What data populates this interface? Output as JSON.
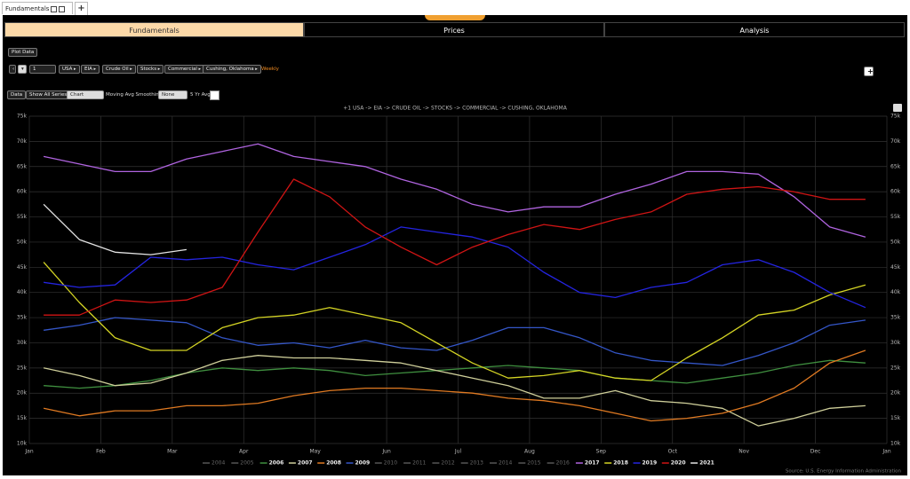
{
  "window_tab": {
    "title": "Fundamentals"
  },
  "tabs": [
    "Fundamentals",
    "Prices",
    "Analysis"
  ],
  "toolbar": {
    "plot_button": "Plot Data",
    "step": "1",
    "breadcrumb": [
      "USA",
      "EIA",
      "Crude Oil",
      "Stocks",
      "Commercial",
      "Cushing, Oklahoma"
    ],
    "frequency": "Weekly"
  },
  "options": {
    "data_button": "Data",
    "show_all": "Show All Series",
    "view_select": "Chart",
    "smoothing_label": "Moving Avg Smoothing",
    "smoothing_select": "None",
    "avg_label": "5 Yr Avg:"
  },
  "chart_data": {
    "type": "line",
    "subtitle": "+1 USA -> EIA -> CRUDE OIL -> STOCKS -> COMMERCIAL -> CUSHING, OKLAHOMA",
    "source": "Source: U.S. Energy Information Administration",
    "x": [
      0.2,
      0.7,
      1.2,
      1.7,
      2.2,
      2.7,
      3.2,
      3.7,
      4.2,
      4.7,
      5.2,
      5.7,
      6.2,
      6.7,
      7.2,
      7.7,
      8.2,
      8.7,
      9.2,
      9.7,
      10.2,
      10.7,
      11.2,
      11.7
    ],
    "xlim": [
      0,
      12
    ],
    "xticks": [
      {
        "value": 0,
        "label": "Jan"
      },
      {
        "value": 1,
        "label": "Feb"
      },
      {
        "value": 2,
        "label": "Mar"
      },
      {
        "value": 3,
        "label": "Apr"
      },
      {
        "value": 4,
        "label": "May"
      },
      {
        "value": 5,
        "label": "Jun"
      },
      {
        "value": 6,
        "label": "Jul"
      },
      {
        "value": 7,
        "label": "Aug"
      },
      {
        "value": 8,
        "label": "Sep"
      },
      {
        "value": 9,
        "label": "Oct"
      },
      {
        "value": 10,
        "label": "Nov"
      },
      {
        "value": 11,
        "label": "Dec"
      },
      {
        "value": 12,
        "label": "Jan"
      }
    ],
    "ylim": [
      10000,
      75000
    ],
    "yticks": [
      {
        "value": 10000,
        "label": "10k"
      },
      {
        "value": 15000,
        "label": "15k"
      },
      {
        "value": 20000,
        "label": "20k"
      },
      {
        "value": 25000,
        "label": "25k"
      },
      {
        "value": 30000,
        "label": "30k"
      },
      {
        "value": 35000,
        "label": "35k"
      },
      {
        "value": 40000,
        "label": "40k"
      },
      {
        "value": 45000,
        "label": "45k"
      },
      {
        "value": 50000,
        "label": "50k"
      },
      {
        "value": 55000,
        "label": "55k"
      },
      {
        "value": 60000,
        "label": "60k"
      },
      {
        "value": 65000,
        "label": "65k"
      },
      {
        "value": 70000,
        "label": "70k"
      },
      {
        "value": 75000,
        "label": "75k"
      }
    ],
    "grid": true,
    "legend": "bottom",
    "series": [
      {
        "name": "2004",
        "color": "#555555",
        "visible": false
      },
      {
        "name": "2005",
        "color": "#555555",
        "visible": false
      },
      {
        "name": "2006",
        "color": "#3f8f3f",
        "visible": true,
        "values": [
          21500,
          21000,
          21500,
          22500,
          24000,
          25000,
          24500,
          25000,
          24500,
          23500,
          24000,
          24500,
          25000,
          25500,
          25000,
          24500,
          23000,
          22500,
          22000,
          23000,
          24000,
          25500,
          26500,
          26000
        ]
      },
      {
        "name": "2007",
        "color": "#cfcf9a",
        "visible": true,
        "values": [
          25000,
          23500,
          21500,
          22000,
          24000,
          26500,
          27500,
          27000,
          27000,
          26500,
          26000,
          24500,
          23000,
          21500,
          19000,
          19000,
          20500,
          18500,
          18000,
          17000,
          13500,
          15000,
          17000,
          17500
        ]
      },
      {
        "name": "2008",
        "color": "#e07a22",
        "visible": true,
        "values": [
          17000,
          15500,
          16500,
          16500,
          17500,
          17500,
          18000,
          19500,
          20500,
          21000,
          21000,
          20500,
          20000,
          19000,
          18500,
          17500,
          16000,
          14500,
          15000,
          16000,
          18000,
          21000,
          26000,
          28500
        ]
      },
      {
        "name": "2009",
        "color": "#3456c8",
        "visible": true,
        "values": [
          32500,
          33500,
          35000,
          34500,
          34000,
          31000,
          29500,
          30000,
          29000,
          30500,
          29000,
          28500,
          30500,
          33000,
          33000,
          31000,
          28000,
          26500,
          26000,
          25500,
          27500,
          30000,
          33500,
          34500
        ]
      },
      {
        "name": "2010",
        "color": "#555555",
        "visible": false
      },
      {
        "name": "2011",
        "color": "#555555",
        "visible": false
      },
      {
        "name": "2012",
        "color": "#555555",
        "visible": false
      },
      {
        "name": "2013",
        "color": "#555555",
        "visible": false
      },
      {
        "name": "2014",
        "color": "#555555",
        "visible": false
      },
      {
        "name": "2015",
        "color": "#555555",
        "visible": false
      },
      {
        "name": "2016",
        "color": "#555555",
        "visible": false
      },
      {
        "name": "2017",
        "color": "#b064e0",
        "visible": true,
        "values": [
          67000,
          65500,
          64000,
          64000,
          66500,
          68000,
          69500,
          67000,
          66000,
          65000,
          62500,
          60500,
          57500,
          56000,
          57000,
          57000,
          59500,
          61500,
          64000,
          64000,
          63500,
          59000,
          53000,
          51000
        ]
      },
      {
        "name": "2018",
        "color": "#d4d424",
        "visible": true,
        "values": [
          46000,
          38000,
          31000,
          28500,
          28500,
          33000,
          35000,
          35500,
          37000,
          35500,
          34000,
          30000,
          26000,
          23000,
          23500,
          24500,
          23000,
          22500,
          27000,
          31000,
          35500,
          36500,
          39500,
          41500
        ]
      },
      {
        "name": "2019",
        "color": "#2424e0",
        "visible": true,
        "values": [
          42000,
          41000,
          41500,
          47000,
          46500,
          47000,
          45500,
          44500,
          47000,
          49500,
          53000,
          52000,
          51000,
          49000,
          44000,
          40000,
          39000,
          41000,
          42000,
          45500,
          46500,
          44000,
          40000,
          37000
        ]
      },
      {
        "name": "2020",
        "color": "#d01414",
        "visible": true,
        "values": [
          35500,
          35500,
          38500,
          38000,
          38500,
          41000,
          52000,
          62500,
          59000,
          53000,
          49000,
          45500,
          49000,
          51500,
          53500,
          52500,
          54500,
          56000,
          59500,
          60500,
          61000,
          60000,
          58500,
          58500
        ]
      },
      {
        "name": "2021",
        "color": "#e4e4e4",
        "visible": true,
        "values": [
          57500,
          50500,
          48000,
          47500,
          48500,
          null,
          null,
          null,
          null,
          null,
          null,
          null,
          null,
          null,
          null,
          null,
          null,
          null,
          null,
          null,
          null,
          null,
          null,
          null
        ]
      }
    ]
  }
}
